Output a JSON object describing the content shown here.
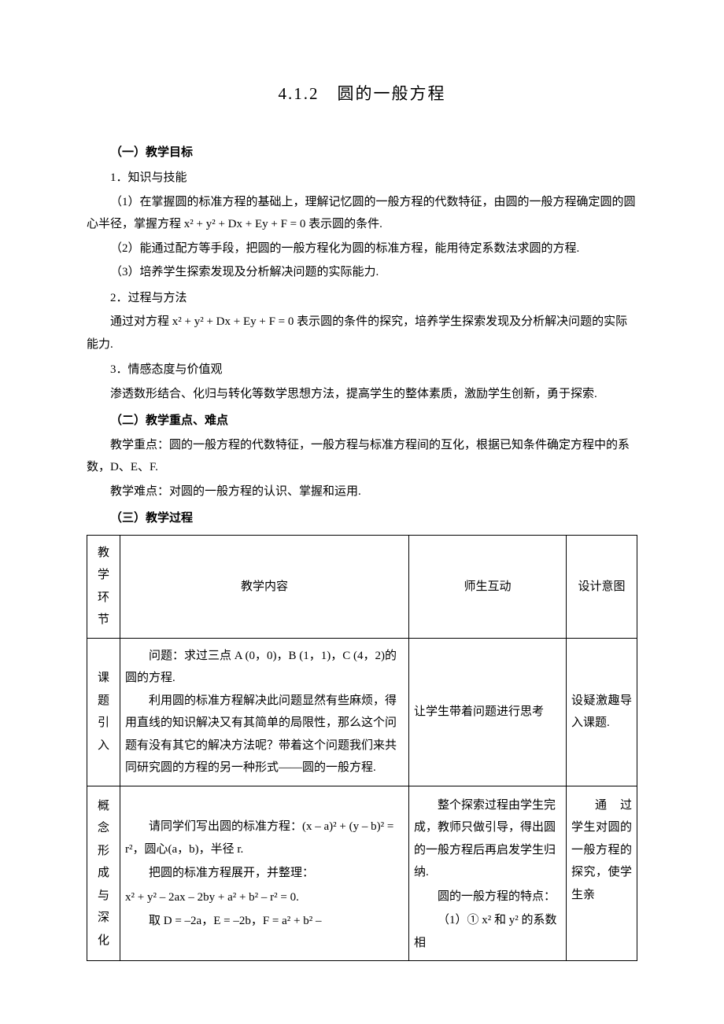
{
  "title": "4.1.2　圆的一般方程",
  "s1_heading": "（一）教学目标",
  "s1_1_h": "1．知识与技能",
  "s1_1_p1": "（1）在掌握圆的标准方程的基础上，理解记忆圆的一般方程的代数特征，由圆的一般方程确定圆的圆心半径，掌握方程 x² + y² + Dx + Ey + F = 0 表示圆的条件.",
  "s1_1_p2": "（2）能通过配方等手段，把圆的一般方程化为圆的标准方程，能用待定系数法求圆的方程.",
  "s1_1_p3": "（3）培养学生探索发现及分析解决问题的实际能力.",
  "s1_2_h": "2．过程与方法",
  "s1_2_p1": "通过对方程 x² + y² + Dx + Ey + F = 0 表示圆的条件的探究，培养学生探索发现及分析解决问题的实际能力.",
  "s1_3_h": "3．情感态度与价值观",
  "s1_3_p1": "渗透数形结合、化归与转化等数学思想方法，提高学生的整体素质，激励学生创新，勇于探索.",
  "s2_heading": "（二）教学重点、难点",
  "s2_p1": "教学重点：圆的一般方程的代数特征，一般方程与标准方程间的互化，根据已知条件确定方程中的系数，D、E、F.",
  "s2_p2": "教学难点：对圆的一般方程的认识、掌握和运用.",
  "s3_heading": "（三）教学过程",
  "table": {
    "header": {
      "c1": "教学环节",
      "c2": "教学内容",
      "c3": "师生互动",
      "c4": "设计意图"
    },
    "row1": {
      "stage_l1": "课题",
      "stage_l2": "引入",
      "content_p1": "问题：求过三点 A (0，0)，B (1，1)，C (4，2)的圆的方程.",
      "content_p2": "利用圆的标准方程解决此问题显然有些麻烦，得用直线的知识解决又有其简单的局限性，那么这个问题有没有其它的解决方法呢？带着这个问题我们来共同研究圆的方程的另一种形式——圆的一般方程.",
      "inter": "让学生带着问题进行思考",
      "intent": "设疑激趣导入课题."
    },
    "row2": {
      "stage_l1": "概念",
      "stage_l2": "形成",
      "stage_l3": "与深",
      "stage_l4": "化",
      "content_p1": "请同学们写出圆的标准方程：(x – a)² + (y – b)² = r²，圆心(a，b)，半径 r.",
      "content_p2": "把圆的标准方程展开，并整理：",
      "content_p3": "x² + y² – 2ax – 2by + a² + b² – r² = 0.",
      "content_p4": "取 D = –2a，E = –2b，F = a² + b² –",
      "inter_p1": "整个探索过程由学生完成，教师只做引导，得出圆的一般方程后再启发学生归纳.",
      "inter_p2": "圆的一般方程的特点：",
      "inter_p3": "（1）① x² 和 y² 的系数相",
      "intent": "通　过学生对圆的一般方程的探究，使学生亲"
    }
  },
  "colors": {
    "text": "#000000",
    "background": "#ffffff",
    "border": "#000000"
  }
}
